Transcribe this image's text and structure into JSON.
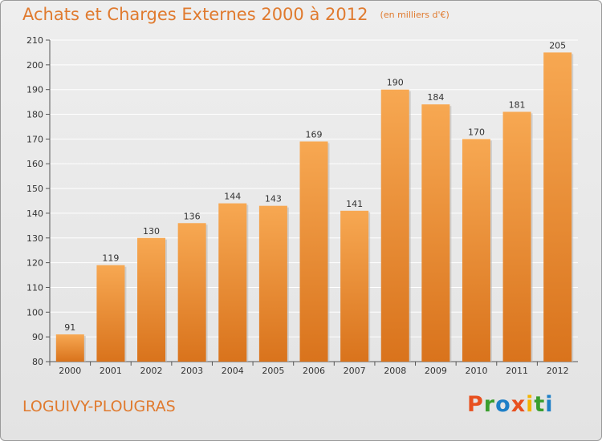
{
  "header": {
    "title": "Achats et Charges Externes 2000 à 2012",
    "subtitle": "(en milliers d'€)"
  },
  "footer": {
    "city": "LOGUIVY-PLOUGRAS",
    "logo": {
      "letters": [
        "P",
        "r",
        "o",
        "x",
        "i",
        "t",
        "i"
      ],
      "colors": [
        "#e8501f",
        "#3a9e2e",
        "#1e7fc7",
        "#e8501f",
        "#f4b400",
        "#3a9e2e",
        "#1e7fc7"
      ]
    }
  },
  "colors": {
    "accent": "#e07a2e",
    "bar_top": "#f7a852",
    "bar_bottom": "#d9731c"
  },
  "chart_data": {
    "type": "bar",
    "title": "Achats et Charges Externes 2000 à 2012",
    "subtitle": "(en milliers d'€)",
    "xlabel": "",
    "ylabel": "",
    "categories": [
      "2000",
      "2001",
      "2002",
      "2003",
      "2004",
      "2005",
      "2006",
      "2007",
      "2008",
      "2009",
      "2010",
      "2011",
      "2012"
    ],
    "values": [
      91,
      119,
      130,
      136,
      144,
      143,
      169,
      141,
      190,
      184,
      170,
      181,
      205
    ],
    "ylim": [
      80,
      210
    ],
    "yticks": [
      80,
      90,
      100,
      110,
      120,
      130,
      140,
      150,
      160,
      170,
      180,
      190,
      200,
      210
    ],
    "grid": true,
    "data_labels": true
  }
}
